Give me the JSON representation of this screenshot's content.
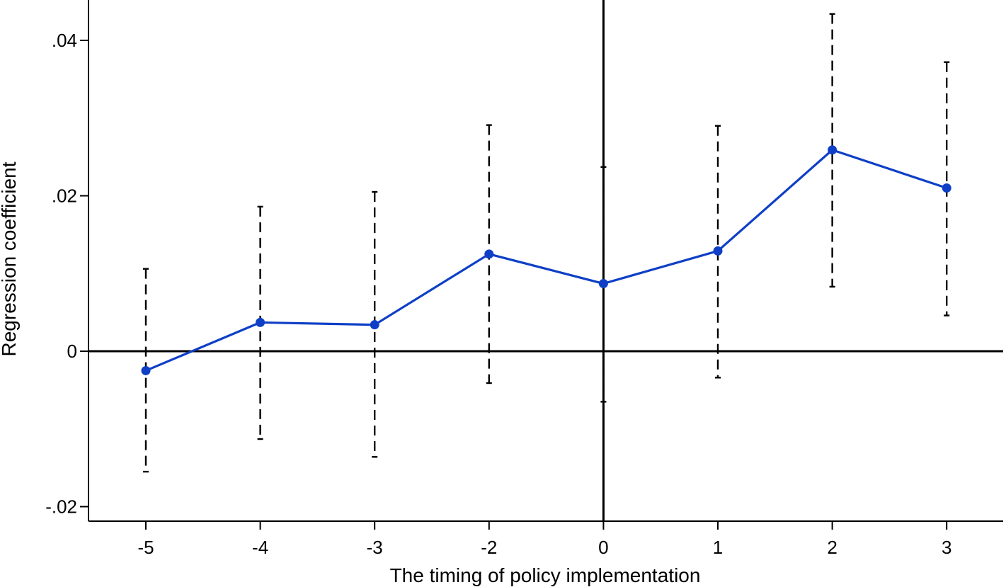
{
  "chart_data": {
    "type": "line",
    "title": "",
    "xlabel": "The timing of policy implementation",
    "ylabel": "Regression coefficient",
    "x_tick_labels": [
      "-5",
      "-4",
      "-3",
      "-2",
      "0",
      "1",
      "2",
      "3"
    ],
    "y_ticks": [
      -0.02,
      0,
      0.02,
      0.04
    ],
    "y_tick_labels": [
      "-.02",
      "0",
      ".02",
      ".04"
    ],
    "ylim": [
      -0.022,
      0.045
    ],
    "grid": false,
    "series": [
      {
        "x": [
          "-5",
          "-4",
          "-3",
          "-2",
          "0",
          "1",
          "2",
          "3"
        ],
        "values": [
          -0.0025,
          0.0037,
          0.0034,
          0.0125,
          0.0087,
          0.0129,
          0.0259,
          0.021
        ],
        "ci_lower": [
          -0.0155,
          -0.0113,
          -0.0136,
          -0.0041,
          -0.0065,
          -0.0034,
          0.0083,
          0.0046
        ],
        "ci_upper": [
          0.0106,
          0.0186,
          0.0205,
          0.0291,
          0.0237,
          0.029,
          0.0434,
          0.0372
        ],
        "color": "#0e3fc6"
      }
    ],
    "reference_lines": {
      "y": 0,
      "x": "0"
    },
    "colors": {
      "series": "#0e3fc6",
      "axes": "#000000",
      "error_bars": "#000000"
    }
  }
}
